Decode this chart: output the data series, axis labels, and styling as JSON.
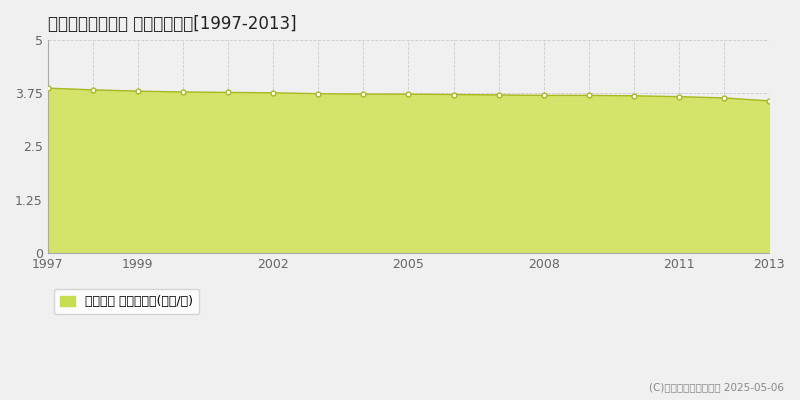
{
  "title": "久慈郡大子町頃藤 基準地価推移[1997-2013]",
  "years": [
    1997,
    1998,
    1999,
    2000,
    2001,
    2002,
    2003,
    2004,
    2005,
    2006,
    2007,
    2008,
    2009,
    2010,
    2011,
    2012,
    2013
  ],
  "values": [
    3.87,
    3.83,
    3.8,
    3.78,
    3.77,
    3.76,
    3.74,
    3.73,
    3.73,
    3.72,
    3.71,
    3.7,
    3.7,
    3.69,
    3.67,
    3.64,
    3.57
  ],
  "line_color": "#a8b820",
  "fill_color": "#d4e46a",
  "marker_color": "#ffffff",
  "marker_edge_color": "#a8b820",
  "ylim": [
    0,
    5
  ],
  "yticks": [
    0,
    1.25,
    2.5,
    3.75,
    5
  ],
  "ytick_labels": [
    "0",
    "1.25",
    "2.5",
    "3.75",
    "5"
  ],
  "xlim_start": 1997,
  "xlim_end": 2013,
  "xticks": [
    1997,
    1999,
    2002,
    2005,
    2008,
    2011,
    2013
  ],
  "background_color": "#f0f0f0",
  "plot_bg_color": "#f0f0f0",
  "grid_color_vertical": "#cccccc",
  "grid_color_horizontal": "#cccccc",
  "legend_label": "基準地価 平均坪単価(万円/坪)",
  "legend_color": "#c8dc50",
  "copyright_text": "(C)土地価格ドットコム 2025-05-06",
  "title_fontsize": 12,
  "axis_fontsize": 9,
  "legend_fontsize": 9
}
